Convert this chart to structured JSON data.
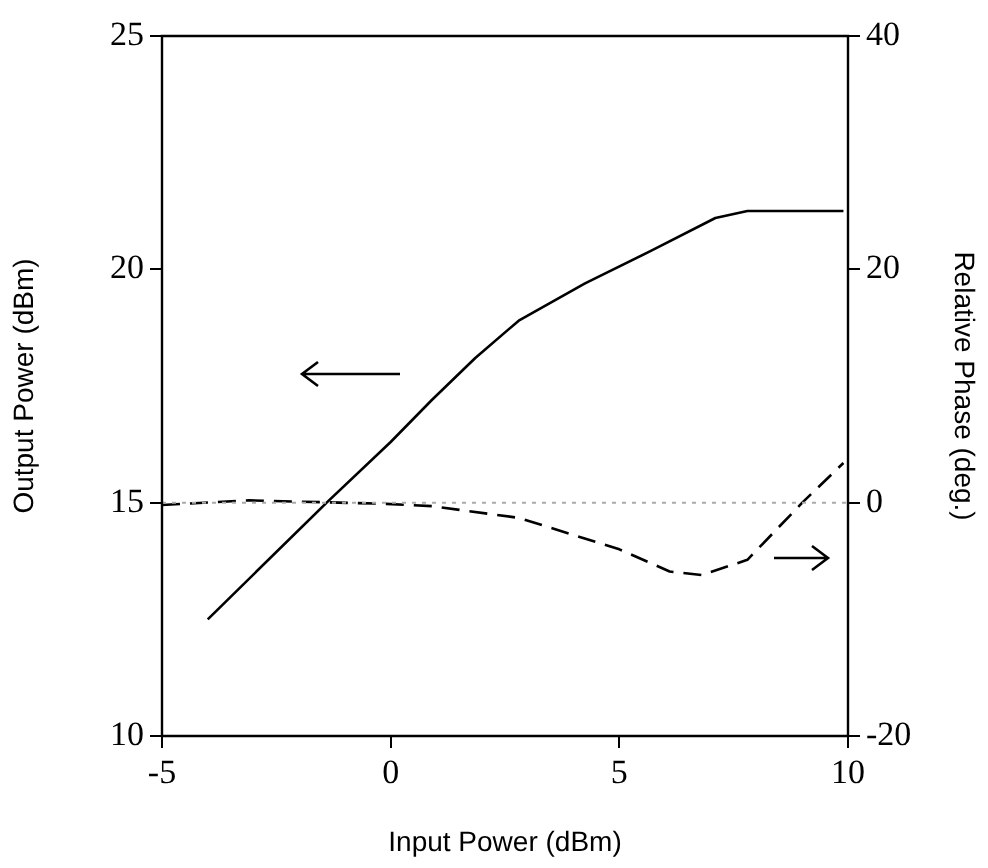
{
  "chart_data": {
    "type": "line",
    "xlabel": "Input Power (dBm)",
    "ylabel": "Output Power (dBm)",
    "y2label": "Relative Phase (deg.)",
    "xlim": [
      -5,
      10
    ],
    "xticks": [
      -5,
      0,
      5,
      10
    ],
    "ylim": [
      10,
      25
    ],
    "yticks": [
      10,
      15,
      20,
      25
    ],
    "y2lim": [
      -20,
      40
    ],
    "y2ticks": [
      -20,
      0,
      20,
      40
    ],
    "legend": false,
    "marker": "none",
    "series": [
      {
        "color": "#000000",
        "line_style": "solid",
        "x": [
          -4,
          -1.4,
          0,
          0.9,
          1.85,
          2.8,
          4.25,
          5.7,
          7.1,
          7.8,
          9.9
        ],
        "values": [
          12.5,
          15,
          16.3,
          17.2,
          18.1,
          18.9,
          19.7,
          20.4,
          21.1,
          21.25,
          21.25
        ]
      },
      {
        "color": "#000000",
        "line_style": "dashed",
        "axis": "y2",
        "x": [
          -5,
          -3.1,
          -0.1,
          0.9,
          2.8,
          5,
          6.1,
          6.8,
          7.8,
          9,
          9.9
        ],
        "values": [
          -0.2,
          0.2,
          -0.1,
          -0.3,
          -1.3,
          -4,
          -5.9,
          -6.2,
          -4.9,
          0,
          3.4
        ]
      }
    ],
    "ref_lines": [
      {
        "axis": "y2",
        "value": 0,
        "color": "#aaaaaa",
        "line_style": "dotted"
      }
    ]
  }
}
